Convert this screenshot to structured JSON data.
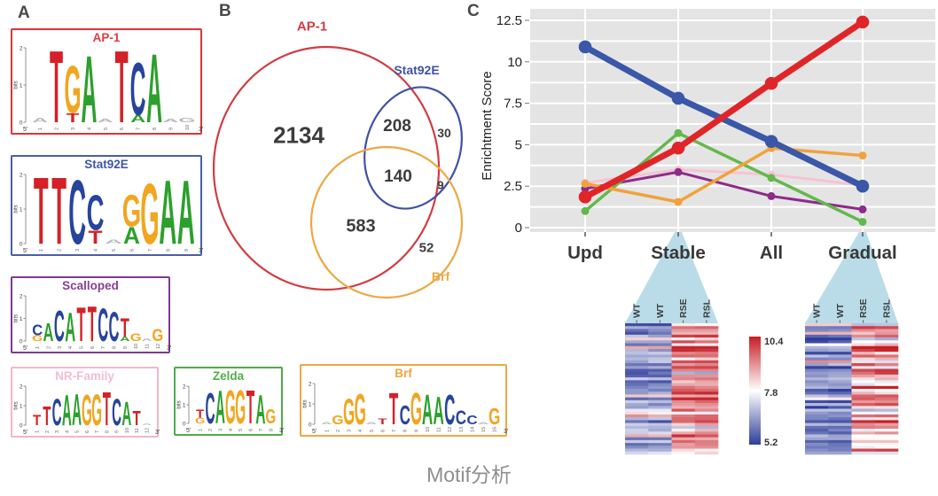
{
  "caption": "Motif分析",
  "panel_a": {
    "label": "A",
    "bits_label": "bits",
    "bits_ticks": [
      "0",
      "1",
      "2"
    ],
    "five_prime": "5'",
    "three_prime": "3'",
    "letter_colors": {
      "A": "#2ca02c",
      "C": "#27449c",
      "G": "#f2a51f",
      "T": "#d42127",
      "N": "#b9b9b9"
    },
    "motifs": [
      {
        "name": "AP-1",
        "color": "#e03a40",
        "border": "#d8353b",
        "letters": [
          {
            "ch": "a",
            "c": "N",
            "h": 0.12
          },
          {
            "ch": "T",
            "c": "T",
            "h": 2.0
          },
          {
            "ch": "G",
            "c": "G",
            "h": 1.3,
            "sub": {
              "ch": "T",
              "c": "T",
              "h": 0.25
            }
          },
          {
            "ch": "A",
            "c": "A",
            "h": 1.85
          },
          {
            "ch": "a",
            "c": "N",
            "h": 0.1
          },
          {
            "ch": "T",
            "c": "T",
            "h": 2.0
          },
          {
            "ch": "C",
            "c": "C",
            "h": 1.45,
            "sub": {
              "ch": "A",
              "c": "A",
              "h": 0.2
            }
          },
          {
            "ch": "A",
            "c": "A",
            "h": 1.9
          },
          {
            "ch": "a",
            "c": "N",
            "h": 0.1
          },
          {
            "ch": "g",
            "c": "N",
            "h": 0.12
          }
        ]
      },
      {
        "name": "Stat92E",
        "color": "#3f55a6",
        "border": "#4a5fa8",
        "letters": [
          {
            "ch": "T",
            "c": "T",
            "h": 2.0
          },
          {
            "ch": "T",
            "c": "T",
            "h": 2.0
          },
          {
            "ch": "C",
            "c": "C",
            "h": 1.9
          },
          {
            "ch": "C",
            "c": "C",
            "h": 1.05,
            "sub": {
              "ch": "T",
              "c": "T",
              "h": 0.4
            }
          },
          {
            "ch": "a",
            "c": "N",
            "h": 0.12
          },
          {
            "ch": "G",
            "c": "G",
            "h": 0.95,
            "sub": {
              "ch": "A",
              "c": "A",
              "h": 0.5
            }
          },
          {
            "ch": "G",
            "c": "G",
            "h": 1.8
          },
          {
            "ch": "A",
            "c": "A",
            "h": 1.9
          },
          {
            "ch": "A",
            "c": "A",
            "h": 1.9
          }
        ]
      },
      {
        "name": "Scalloped",
        "color": "#8a3d96",
        "border": "#7d3a8f",
        "letters": [
          {
            "ch": "C",
            "c": "C",
            "h": 0.5,
            "sub": {
              "ch": "g",
              "c": "G",
              "h": 0.25
            }
          },
          {
            "ch": "A",
            "c": "A",
            "h": 0.8
          },
          {
            "ch": "C",
            "c": "C",
            "h": 1.4
          },
          {
            "ch": "A",
            "c": "A",
            "h": 1.3
          },
          {
            "ch": "T",
            "c": "T",
            "h": 1.55
          },
          {
            "ch": "T",
            "c": "T",
            "h": 1.6
          },
          {
            "ch": "C",
            "c": "C",
            "h": 1.5
          },
          {
            "ch": "C",
            "c": "C",
            "h": 1.35
          },
          {
            "ch": "T",
            "c": "T",
            "h": 0.85,
            "sub": {
              "ch": "a",
              "c": "A",
              "h": 0.2
            }
          },
          {
            "ch": "g",
            "c": "G",
            "h": 0.35
          },
          {
            "ch": "a",
            "c": "N",
            "h": 0.12
          },
          {
            "ch": "G",
            "c": "G",
            "h": 0.55
          }
        ]
      },
      {
        "name": "NR-Family",
        "color": "#f4bcd0",
        "border": "#f0b7cb",
        "letters": [
          {
            "ch": "T",
            "c": "T",
            "h": 0.55
          },
          {
            "ch": "T",
            "c": "T",
            "h": 1.0
          },
          {
            "ch": "C",
            "c": "C",
            "h": 1.4
          },
          {
            "ch": "A",
            "c": "A",
            "h": 1.6
          },
          {
            "ch": "A",
            "c": "A",
            "h": 1.65
          },
          {
            "ch": "G",
            "c": "G",
            "h": 1.6
          },
          {
            "ch": "G",
            "c": "G",
            "h": 1.65
          },
          {
            "ch": "T",
            "c": "T",
            "h": 1.75
          },
          {
            "ch": "C",
            "c": "C",
            "h": 1.4
          },
          {
            "ch": "A",
            "c": "A",
            "h": 1.25
          },
          {
            "ch": "T",
            "c": "T",
            "h": 0.75
          },
          {
            "ch": "a",
            "c": "N",
            "h": 0.1
          }
        ]
      },
      {
        "name": "Zelda",
        "color": "#4fae47",
        "border": "#52a94a",
        "letters": [
          {
            "ch": "t",
            "c": "T",
            "h": 0.45,
            "sub": {
              "ch": "g",
              "c": "G",
              "h": 0.3
            }
          },
          {
            "ch": "C",
            "c": "C",
            "h": 1.7
          },
          {
            "ch": "A",
            "c": "A",
            "h": 1.8
          },
          {
            "ch": "G",
            "c": "G",
            "h": 1.85
          },
          {
            "ch": "G",
            "c": "G",
            "h": 1.85
          },
          {
            "ch": "T",
            "c": "T",
            "h": 1.85
          },
          {
            "ch": "A",
            "c": "A",
            "h": 1.6
          },
          {
            "ch": "G",
            "c": "G",
            "h": 0.8
          }
        ]
      },
      {
        "name": "Brf",
        "color": "#f0a53f",
        "border": "#eda842",
        "letters": [
          {
            "ch": "a",
            "c": "N",
            "h": 0.1
          },
          {
            "ch": "g",
            "c": "G",
            "h": 0.45
          },
          {
            "ch": "G",
            "c": "G",
            "h": 1.3
          },
          {
            "ch": "G",
            "c": "G",
            "h": 1.55
          },
          {
            "ch": "a",
            "c": "N",
            "h": 0.12
          },
          {
            "ch": "t",
            "c": "T",
            "h": 0.3
          },
          {
            "ch": "T",
            "c": "T",
            "h": 1.6
          },
          {
            "ch": "C",
            "c": "C",
            "h": 0.95
          },
          {
            "ch": "G",
            "c": "G",
            "h": 1.6
          },
          {
            "ch": "A",
            "c": "A",
            "h": 1.5
          },
          {
            "ch": "A",
            "c": "A",
            "h": 1.4
          },
          {
            "ch": "C",
            "c": "C",
            "h": 1.5
          },
          {
            "ch": "C",
            "c": "C",
            "h": 0.7
          },
          {
            "ch": "c",
            "c": "C",
            "h": 0.45
          },
          {
            "ch": "a",
            "c": "N",
            "h": 0.1
          },
          {
            "ch": "G",
            "c": "G",
            "h": 0.8
          }
        ]
      }
    ]
  },
  "panel_b": {
    "label": "B",
    "sets": [
      {
        "name": "AP-1",
        "color": "#d23c42"
      },
      {
        "name": "Stat92E",
        "color": "#3f51a4"
      },
      {
        "name": "Brf",
        "color": "#eda842"
      }
    ],
    "counts": [
      {
        "region": "AP-1 only",
        "value": "2134"
      },
      {
        "region": "AP-1 ∩ Stat92E",
        "value": "208"
      },
      {
        "region": "Stat92E only",
        "value": "30"
      },
      {
        "region": "AP-1 ∩ Stat92E ∩ Brf",
        "value": "140"
      },
      {
        "region": "Stat92E ∩ Brf",
        "value": "9"
      },
      {
        "region": "AP-1 ∩ Brf",
        "value": "583"
      },
      {
        "region": "Brf only",
        "value": "52"
      }
    ]
  },
  "panel_c": {
    "label": "C"
  },
  "chart_data": {
    "type": "line",
    "title": "",
    "categories": [
      "Upd",
      "Stable",
      "All",
      "Gradual"
    ],
    "ylabel": "Enrichtment Score",
    "ylim": [
      0,
      12.5
    ],
    "yticks": [
      0,
      2.5,
      5,
      7.5,
      10,
      12.5
    ],
    "ytick_labels": [
      "0",
      "2.5",
      "5",
      "7.5",
      "10",
      "12.5"
    ],
    "plot_background": "#e4e4e4",
    "grid_color": "#ffffff",
    "legend": "none",
    "series": [
      {
        "name": "AP-1",
        "color": "#e02529",
        "width": 7,
        "values": [
          1.85,
          4.8,
          8.7,
          12.4
        ]
      },
      {
        "name": "Stat92E",
        "color": "#3a57a8",
        "width": 7,
        "values": [
          10.9,
          7.8,
          5.2,
          2.5
        ]
      },
      {
        "name": "Zelda",
        "color": "#63b84b",
        "width": 3.5,
        "values": [
          1.0,
          5.7,
          3.0,
          0.35
        ]
      },
      {
        "name": "Brf",
        "color": "#f0a23c",
        "width": 3.5,
        "values": [
          2.65,
          1.55,
          4.8,
          4.35
        ]
      },
      {
        "name": "Scalloped",
        "color": "#8d2b8a",
        "width": 3,
        "values": [
          2.35,
          3.35,
          1.9,
          1.1
        ]
      },
      {
        "name": "NR-Family",
        "color": "#f6c3d4",
        "width": 3,
        "values": [
          2.7,
          3.5,
          3.2,
          2.55
        ]
      }
    ]
  },
  "callouts": {
    "triangle_color": "#b9dce8",
    "targets": [
      "Stable",
      "Gradual"
    ]
  },
  "heatmaps": [
    {
      "target": "Stable",
      "columns": [
        "WT",
        "WT",
        "RSE",
        "RSL"
      ],
      "rows": 46,
      "seed": 7,
      "low_range": [
        5.4,
        7.5
      ],
      "high_range": [
        7.9,
        10.3
      ],
      "flip_chance": 0.15
    },
    {
      "target": "Gradual",
      "columns": [
        "WT",
        "WT",
        "RSE",
        "RSL"
      ],
      "rows": 46,
      "seed": 13,
      "low_range": [
        5.2,
        7.0
      ],
      "high_range": [
        7.4,
        10.4
      ],
      "flip_chance": 0.12
    }
  ],
  "colorbar": {
    "labels": [
      "10.4",
      "7.8",
      "5.2"
    ],
    "values": [
      10.4,
      7.8,
      5.2
    ],
    "top_color": "#c61d25",
    "mid_color": "#ffffff",
    "bottom_color": "#2e3d9b"
  }
}
